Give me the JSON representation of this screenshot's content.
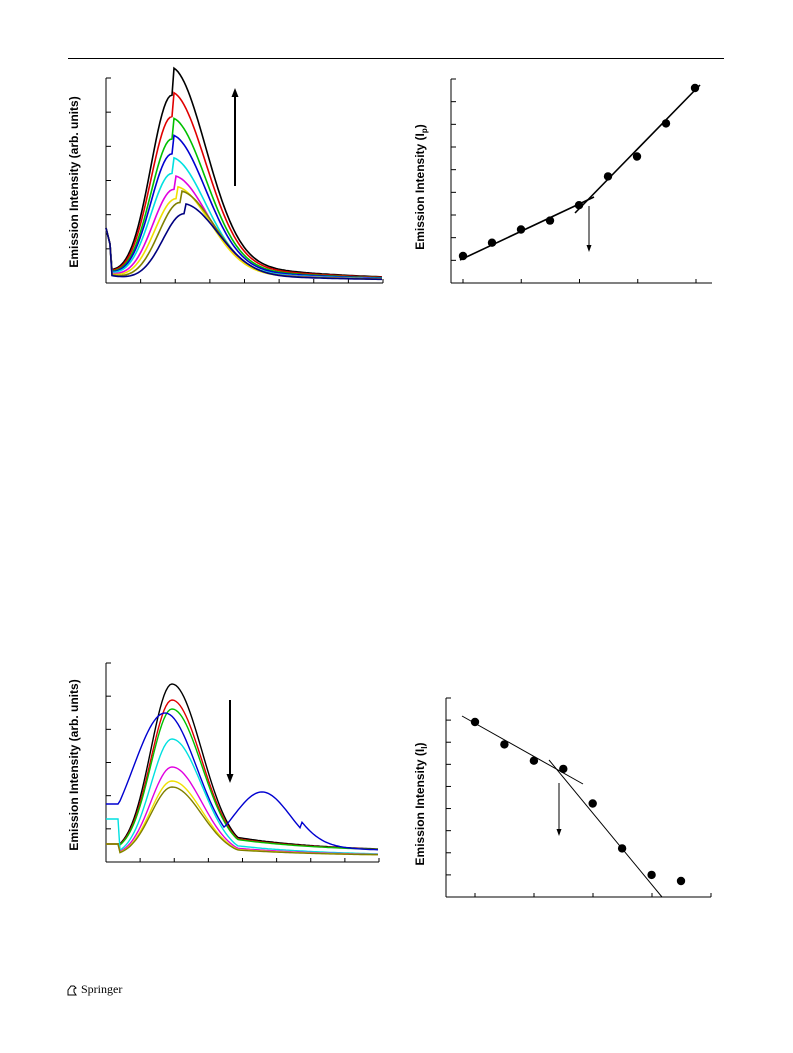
{
  "header": {
    "rule": true
  },
  "figures": {
    "top_left": {
      "ylabel": "Emission Intensity (arb. units)"
    },
    "top_right": {
      "ylabel_main": "Emission Intensity (I",
      "ylabel_sub": "p",
      "ylabel_end": ")"
    },
    "bottom_left": {
      "ylabel": "Emission Intensity (arb. units)"
    },
    "bottom_right": {
      "ylabel": "Emission Intensity (I",
      "ylabel_sub": "I",
      "ylabel_end": ")"
    }
  },
  "footer": {
    "publisher": "Springer"
  },
  "colors": {
    "curves_top": [
      "#000000",
      "#e00000",
      "#00c000",
      "#0000d0",
      "#00e0e0",
      "#e000e0",
      "#f0e000",
      "#808000",
      "#000080"
    ],
    "curves_bottom": [
      "#000000",
      "#e00000",
      "#00c000",
      "#0000d0",
      "#00e0e0",
      "#e000e0",
      "#f0e000",
      "#808000"
    ]
  },
  "chart_data": [
    {
      "type": "line",
      "panel": "top-left emission spectra",
      "ylabel": "Emission Intensity (arb. units)",
      "trend_arrow": "up",
      "series_count": 9
    },
    {
      "type": "scatter",
      "panel": "top-right",
      "ylabel": "Emission Intensity (Ip)",
      "points_index": [
        1,
        2,
        3,
        4,
        5,
        6,
        7,
        8,
        9
      ],
      "values": [
        1.0,
        1.6,
        2.2,
        2.6,
        3.3,
        4.6,
        5.5,
        7.0,
        8.6
      ],
      "fit_lines": 2,
      "break_arrow": "down"
    },
    {
      "type": "line",
      "panel": "bottom-left emission spectra",
      "ylabel": "Emission Intensity (arb. units)",
      "trend_arrow": "down",
      "series_count": 8
    },
    {
      "type": "scatter",
      "panel": "bottom-right",
      "ylabel": "Emission Intensity (II)",
      "points_index": [
        1,
        2,
        3,
        4,
        5,
        6,
        7,
        8
      ],
      "values": [
        7.8,
        6.7,
        5.9,
        5.5,
        3.8,
        1.6,
        0.3,
        0.0
      ],
      "fit_lines": 2,
      "break_arrow": "down"
    }
  ]
}
